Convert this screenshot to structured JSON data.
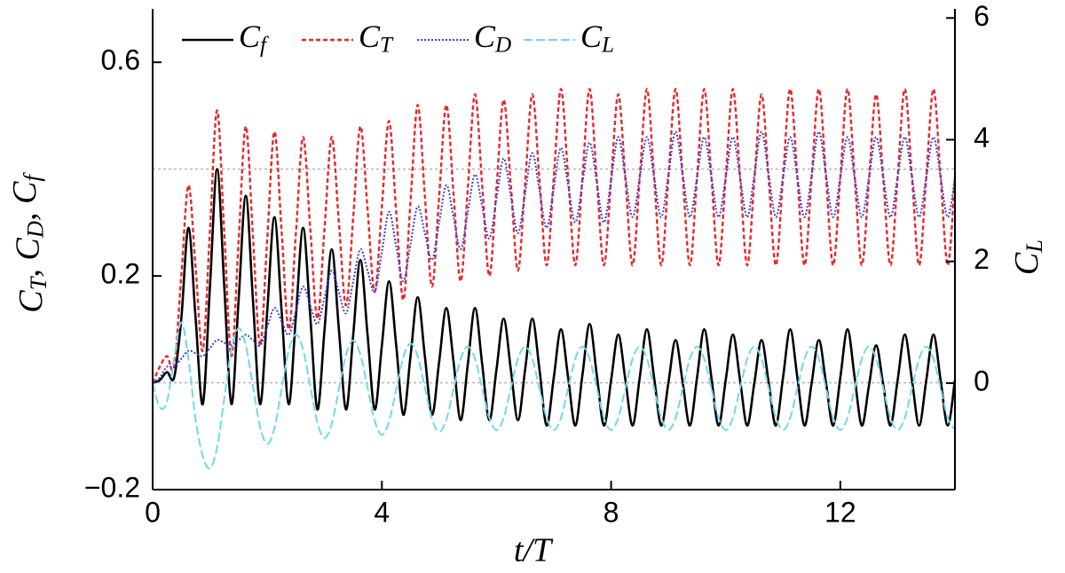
{
  "chart_data": {
    "type": "line",
    "x_label": "t/T",
    "y_label": "CT, CD, Cf",
    "y2_label": "CL",
    "xlim": [
      0,
      14
    ],
    "xticks": [
      0,
      4,
      8,
      12
    ],
    "ylim": [
      -0.2,
      0.7
    ],
    "yticks": [
      {
        "value": -0.2,
        "label": "−0.2"
      },
      0.2,
      0.6
    ],
    "y2lim": [
      -1.75,
      6.15
    ],
    "y2ticks": [
      0,
      2,
      4,
      6
    ],
    "reference_lines": [
      0,
      0.4
    ],
    "legend": "top",
    "x": [
      0,
      0.125,
      0.25,
      0.375,
      0.5,
      0.625,
      0.75,
      0.875,
      1,
      1.125,
      1.25,
      1.375,
      1.5,
      1.625,
      1.75,
      1.875,
      2,
      2.125,
      2.25,
      2.375,
      2.5,
      2.625,
      2.75,
      2.875,
      3,
      3.125,
      3.25,
      3.375,
      3.5,
      3.625,
      3.75,
      3.875,
      4,
      4.125,
      4.25,
      4.375,
      4.5,
      4.625,
      4.75,
      4.875,
      5,
      5.125,
      5.25,
      5.375,
      5.5,
      5.625,
      5.75,
      5.875,
      6,
      6.125,
      6.25,
      6.375,
      6.5,
      6.625,
      6.75,
      6.875,
      7,
      7.125,
      7.25,
      7.375,
      7.5,
      7.625,
      7.75,
      7.875,
      8,
      8.125,
      8.25,
      8.375,
      8.5,
      8.625,
      8.75,
      8.875,
      9,
      9.125,
      9.25,
      9.375,
      9.5,
      9.625,
      9.75,
      9.875,
      10,
      10.125,
      10.25,
      10.375,
      10.5,
      10.625,
      10.75,
      10.875,
      11,
      11.125,
      11.25,
      11.375,
      11.5,
      11.625,
      11.75,
      11.875,
      12,
      12.125,
      12.25,
      12.375,
      12.5,
      12.625,
      12.75,
      12.875,
      13,
      13.125,
      13.25,
      13.375,
      13.5,
      13.625,
      13.75,
      13.875,
      14
    ],
    "series": [
      {
        "name": "Cf",
        "color": "#000000",
        "style": "solid",
        "axis": "y",
        "values": [
          0,
          0.005,
          0.02,
          0.01,
          0.12,
          0.29,
          0.12,
          -0.04,
          0.18,
          0.4,
          0.18,
          -0.04,
          0.155,
          0.35,
          0.155,
          -0.04,
          0.135,
          0.31,
          0.135,
          -0.04,
          0.125,
          0.29,
          0.125,
          -0.05,
          0.1,
          0.25,
          0.1,
          -0.05,
          0.09,
          0.23,
          0.09,
          -0.05,
          0.07,
          0.19,
          0.07,
          -0.06,
          0.05,
          0.16,
          0.05,
          -0.06,
          0.04,
          0.14,
          0.04,
          -0.07,
          0.035,
          0.14,
          0.035,
          -0.07,
          0.025,
          0.12,
          0.025,
          -0.07,
          0.025,
          0.12,
          0.025,
          -0.08,
          0.01,
          0.1,
          0.01,
          -0.08,
          0.015,
          0.11,
          0.015,
          -0.08,
          0.005,
          0.09,
          0.005,
          -0.08,
          0.01,
          0.1,
          0.01,
          -0.08,
          0,
          0.08,
          0,
          -0.08,
          0.01,
          0.1,
          0.01,
          -0.08,
          0.005,
          0.09,
          0.005,
          -0.08,
          0,
          0.08,
          0,
          -0.08,
          0.01,
          0.1,
          0.01,
          -0.08,
          0,
          0.08,
          0,
          -0.08,
          0.01,
          0.1,
          0.01,
          -0.08,
          -0.005,
          0.07,
          -0.005,
          -0.08,
          0.005,
          0.09,
          0.005,
          -0.08,
          0.005,
          0.09,
          0.005,
          -0.08,
          0.005
        ]
      },
      {
        "name": "CT",
        "color": "#e8262b",
        "style": "dashed",
        "axis": "y",
        "values": [
          0,
          0.03,
          0.05,
          0.03,
          0.2,
          0.37,
          0.215,
          0.06,
          0.285,
          0.51,
          0.28,
          0.05,
          0.265,
          0.48,
          0.275,
          0.07,
          0.27,
          0.47,
          0.285,
          0.1,
          0.28,
          0.46,
          0.29,
          0.12,
          0.29,
          0.46,
          0.3,
          0.145,
          0.31,
          0.48,
          0.325,
          0.17,
          0.33,
          0.49,
          0.32,
          0.155,
          0.34,
          0.52,
          0.35,
          0.18,
          0.35,
          0.52,
          0.355,
          0.19,
          0.365,
          0.54,
          0.37,
          0.2,
          0.365,
          0.53,
          0.37,
          0.21,
          0.375,
          0.54,
          0.38,
          0.22,
          0.385,
          0.55,
          0.385,
          0.22,
          0.385,
          0.55,
          0.38,
          0.22,
          0.38,
          0.54,
          0.38,
          0.22,
          0.385,
          0.55,
          0.385,
          0.22,
          0.385,
          0.55,
          0.385,
          0.22,
          0.385,
          0.55,
          0.385,
          0.22,
          0.385,
          0.55,
          0.385,
          0.22,
          0.38,
          0.54,
          0.38,
          0.22,
          0.385,
          0.55,
          0.385,
          0.22,
          0.385,
          0.55,
          0.385,
          0.22,
          0.385,
          0.55,
          0.385,
          0.22,
          0.38,
          0.54,
          0.38,
          0.22,
          0.385,
          0.55,
          0.385,
          0.22,
          0.385,
          0.55,
          0.385,
          0.22,
          0.385
        ]
      },
      {
        "name": "CD",
        "color": "#3a3fd9",
        "style": "dotted",
        "axis": "y",
        "values": [
          0,
          0.01,
          0.03,
          0.03,
          0.045,
          0.06,
          0.055,
          0.05,
          0.065,
          0.08,
          0.075,
          0.07,
          0.08,
          0.09,
          0.08,
          0.07,
          0.105,
          0.14,
          0.115,
          0.09,
          0.135,
          0.18,
          0.145,
          0.11,
          0.16,
          0.21,
          0.17,
          0.13,
          0.19,
          0.25,
          0.21,
          0.17,
          0.245,
          0.32,
          0.255,
          0.19,
          0.26,
          0.33,
          0.28,
          0.23,
          0.3,
          0.37,
          0.31,
          0.25,
          0.32,
          0.39,
          0.33,
          0.27,
          0.345,
          0.42,
          0.35,
          0.28,
          0.355,
          0.43,
          0.36,
          0.29,
          0.365,
          0.44,
          0.37,
          0.3,
          0.375,
          0.45,
          0.375,
          0.3,
          0.38,
          0.46,
          0.385,
          0.31,
          0.385,
          0.46,
          0.385,
          0.31,
          0.39,
          0.47,
          0.39,
          0.31,
          0.385,
          0.46,
          0.385,
          0.31,
          0.385,
          0.46,
          0.385,
          0.31,
          0.39,
          0.47,
          0.39,
          0.31,
          0.385,
          0.46,
          0.385,
          0.31,
          0.39,
          0.47,
          0.39,
          0.31,
          0.385,
          0.46,
          0.385,
          0.31,
          0.385,
          0.46,
          0.385,
          0.31,
          0.385,
          0.46,
          0.385,
          0.31,
          0.385,
          0.46,
          0.385,
          0.31,
          0.385
        ]
      },
      {
        "name": "CL",
        "color": "#6fd9e8",
        "style": "dashdot",
        "axis": "y2",
        "values": [
          0,
          -0.4,
          -0.3,
          0.4,
          1.0,
          0.4,
          -0.6,
          -1.2,
          -1.4,
          -1.06,
          -0.25,
          0.56,
          0.9,
          0.62,
          -0.05,
          -0.72,
          -1.0,
          -0.74,
          -0.1,
          0.54,
          0.8,
          0.55,
          -0.05,
          -0.65,
          -0.9,
          -0.67,
          -0.1,
          0.47,
          0.7,
          0.47,
          -0.075,
          -0.62,
          -0.85,
          -0.63,
          -0.1,
          0.43,
          0.65,
          0.44,
          -0.075,
          -0.59,
          -0.8,
          -0.6,
          -0.1,
          0.4,
          0.6,
          0.4,
          -0.085,
          -0.57,
          -0.77,
          -0.57,
          -0.085,
          0.4,
          0.6,
          0.4,
          -0.085,
          -0.57,
          -0.77,
          -0.57,
          -0.085,
          0.4,
          0.6,
          0.4,
          -0.085,
          -0.57,
          -0.77,
          -0.57,
          -0.085,
          0.4,
          0.6,
          0.4,
          -0.085,
          -0.57,
          -0.77,
          -0.57,
          -0.085,
          0.4,
          0.6,
          0.4,
          -0.085,
          -0.57,
          -0.77,
          -0.57,
          -0.085,
          0.4,
          0.6,
          0.4,
          -0.085,
          -0.57,
          -0.77,
          -0.57,
          -0.085,
          0.4,
          0.6,
          0.4,
          -0.085,
          -0.57,
          -0.77,
          -0.57,
          -0.085,
          0.4,
          0.6,
          0.4,
          -0.085,
          -0.57,
          -0.77,
          -0.57,
          -0.085,
          0.4,
          0.6,
          0.4,
          -0.085,
          -0.57,
          -0.77
        ]
      }
    ]
  }
}
